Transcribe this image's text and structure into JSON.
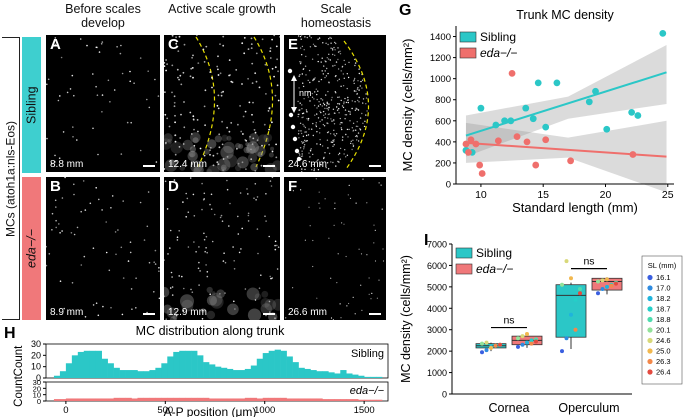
{
  "panels": {
    "A": "A",
    "B": "B",
    "C": "C",
    "D": "D",
    "E": "E",
    "F": "F",
    "G": "G",
    "H": "H",
    "I": "I"
  },
  "micrographs": {
    "col_headers": [
      "Before scales develop",
      "Active scale growth",
      "Scale homeostasis"
    ],
    "row_outer_label": "MCs (atoh1a:nls-Eos)",
    "row_labels": [
      "Sibling",
      "eda−/−"
    ],
    "row_colors": [
      "#3ecfcf",
      "#f0787a"
    ],
    "sizes": [
      "8.8 mm",
      "12.4 mm",
      "24.6 mm",
      "8.9 mm",
      "12.9 mm",
      "26.6 mm"
    ],
    "nm_label": "nm"
  },
  "chart_data": [
    {
      "panel": "G",
      "type": "scatter",
      "title": "Trunk MC density",
      "xlabel": "Standard length (mm)",
      "ylabel": "MC density (cells/mm²)",
      "xlim": [
        8,
        25.5
      ],
      "ylim": [
        0,
        1500
      ],
      "xticks": [
        10,
        15,
        20,
        25
      ],
      "yticks": [
        0,
        200,
        400,
        600,
        800,
        1000,
        1200,
        1400
      ],
      "legend_position": "top-left",
      "series": [
        {
          "name": "Sibling",
          "color": "#2bc7c7",
          "x": [
            8.8,
            9.3,
            10.0,
            11.2,
            11.9,
            12.4,
            13.6,
            14.2,
            14.6,
            15.2,
            16.1,
            18.7,
            19.2,
            20.1,
            22.1,
            22.6,
            24.6
          ],
          "y": [
            320,
            300,
            720,
            560,
            600,
            600,
            720,
            620,
            960,
            540,
            960,
            780,
            880,
            520,
            680,
            650,
            1430
          ],
          "fit": {
            "x": [
              8.8,
              24.9
            ],
            "y": [
              460,
              1060
            ]
          }
        },
        {
          "name": "eda−/−",
          "color": "#ef6f6c",
          "x": [
            8.8,
            9.0,
            9.2,
            9.6,
            9.9,
            10.1,
            11.4,
            12.5,
            12.9,
            13.7,
            14.4,
            15.2,
            17.2,
            22.2
          ],
          "y": [
            380,
            300,
            420,
            380,
            180,
            100,
            410,
            1050,
            450,
            400,
            180,
            420,
            220,
            280
          ],
          "fit": {
            "x": [
              8.8,
              24.9
            ],
            "y": [
              390,
              260
            ]
          }
        }
      ]
    },
    {
      "panel": "H",
      "type": "bar",
      "title": "MC distribution along trunk",
      "xlabel": "A-P position (μm)",
      "ylabel": "Count",
      "xlim": [
        -100,
        1620
      ],
      "xticks": [
        0,
        500,
        1000,
        1500
      ],
      "yticks": [
        0,
        10,
        20,
        30
      ],
      "ylim": [
        0,
        30
      ],
      "bin_start": -60,
      "bin_width": 30,
      "series": [
        {
          "name": "Sibling",
          "color": "#2bc7c7",
          "values": [
            2,
            6,
            13,
            20,
            23,
            24,
            24,
            24,
            17,
            13,
            9,
            7,
            7,
            7,
            6,
            6,
            7,
            9,
            13,
            19,
            23,
            24,
            24,
            24,
            20,
            14,
            12,
            10,
            9,
            8,
            7,
            7,
            8,
            11,
            17,
            22,
            24,
            25,
            24,
            19,
            14,
            9,
            8,
            7,
            6,
            6,
            5,
            4,
            7,
            4,
            3,
            2,
            1,
            1,
            1
          ]
        },
        {
          "name": "eda−/−",
          "color": "#f0787a",
          "values": [
            3,
            3,
            4,
            4,
            4,
            4,
            4,
            4,
            4,
            4,
            5,
            5,
            5,
            4,
            5,
            5,
            5,
            5,
            5,
            5,
            5,
            5,
            5,
            5,
            5,
            5,
            4,
            4,
            4,
            4,
            4,
            4,
            5,
            5,
            4,
            5,
            5,
            5,
            5,
            4,
            4,
            4,
            4,
            4,
            4,
            3,
            3,
            3,
            3,
            3,
            3,
            2,
            2,
            2,
            2
          ]
        }
      ]
    },
    {
      "panel": "I",
      "type": "box",
      "xlabel": "",
      "ylabel": "MC density (cells/mm²)",
      "ylim": [
        0,
        7000
      ],
      "yticks": [
        0,
        1000,
        2000,
        3000,
        4000,
        5000,
        6000,
        7000
      ],
      "categories": [
        "Cornea",
        "Operculum"
      ],
      "legend_position": "top-left",
      "significance": [
        "ns",
        "ns"
      ],
      "sl_legend_title": "SL (mm)",
      "sl_values": [
        "16.1",
        "17.0",
        "18.2",
        "18.7",
        "18.8",
        "20.1",
        "24.6",
        "25.0",
        "26.3",
        "26.4"
      ],
      "sl_colors": [
        "#3a5fe0",
        "#2f8be0",
        "#1fb4dc",
        "#25cfc8",
        "#4fdcae",
        "#92e29a",
        "#d8d879",
        "#f2b84f",
        "#f3884a",
        "#e34a3f"
      ],
      "series": [
        {
          "name": "Sibling",
          "color": "#2bc7c7",
          "boxes": [
            {
              "q1": 2150,
              "median": 2250,
              "q3": 2350,
              "whisker_low": 2000,
              "whisker_high": 2400,
              "points": [
                1950,
                2050,
                2200,
                2250,
                2300,
                2350,
                2400,
                2150,
                2250,
                2300
              ]
            },
            {
              "q1": 2650,
              "median": 4600,
              "q3": 5100,
              "whisker_low": 2100,
              "whisker_high": 5200,
              "points": [
                2000,
                2600,
                3700,
                4400,
                4900,
                5100,
                6200,
                5400,
                3000,
                4700
              ]
            }
          ]
        },
        {
          "name": "eda−/−",
          "color": "#f0787a",
          "boxes": [
            {
              "q1": 2300,
              "median": 2500,
              "q3": 2700,
              "whisker_low": 2150,
              "whisker_high": 2850,
              "points": [
                2200,
                2300,
                2400,
                2500,
                2550,
                2600,
                2700,
                2800,
                2350,
                2450
              ]
            },
            {
              "q1": 4850,
              "median": 5250,
              "q3": 5400,
              "whisker_low": 4650,
              "whisker_high": 5450,
              "points": [
                4700,
                4900,
                5000,
                5100,
                5200,
                5250,
                5300,
                5350,
                5050,
                5150
              ]
            }
          ]
        }
      ]
    }
  ]
}
